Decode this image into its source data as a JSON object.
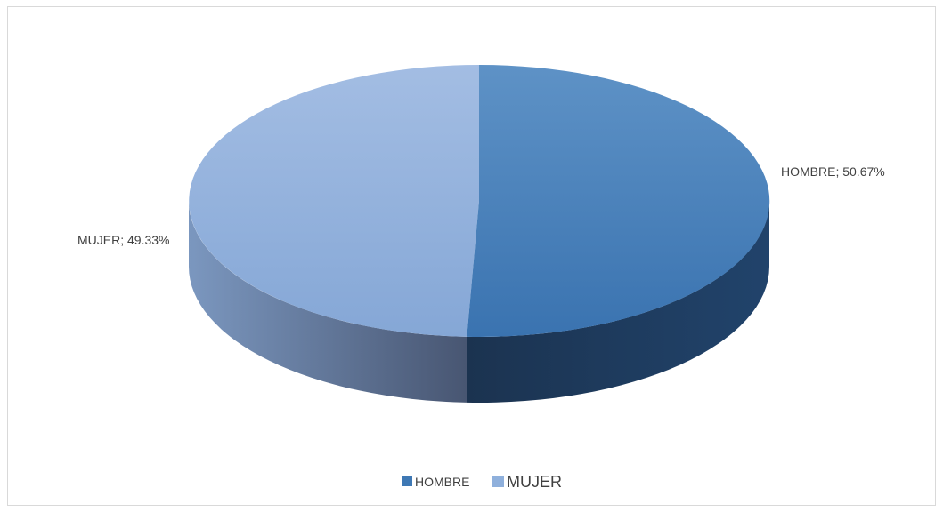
{
  "chart_data": {
    "type": "pie",
    "style": "3d",
    "slices": [
      {
        "name": "HOMBRE",
        "value": 50.67,
        "label": "HOMBRE; 50.67%",
        "color": "#3e78b4"
      },
      {
        "name": "MUJER",
        "value": 49.33,
        "label": "MUJER; 49.33%",
        "color": "#8fb0dc"
      }
    ],
    "legend": {
      "position": "bottom",
      "items": [
        "HOMBRE",
        "MUJER"
      ]
    }
  }
}
